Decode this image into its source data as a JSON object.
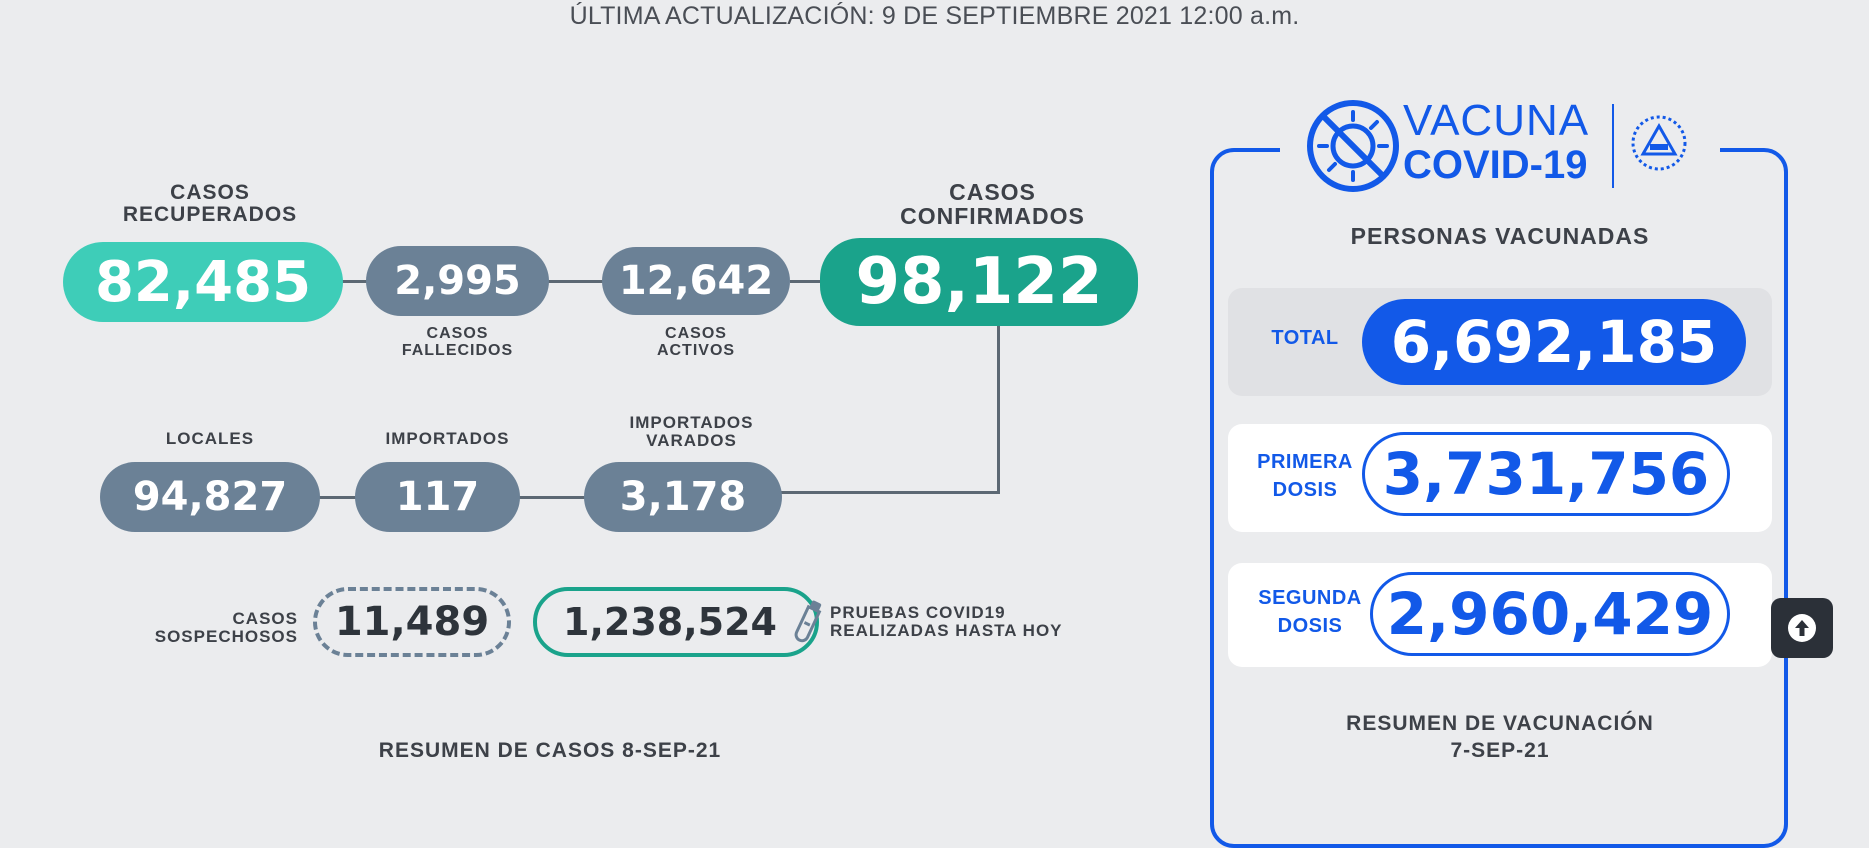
{
  "update": "ÚLTIMA ACTUALIZACIÓN: 9 DE SEPTIEMBRE 2021 12:00 a.m.",
  "cases": {
    "recuperados": {
      "label1": "CASOS",
      "label2": "RECUPERADOS",
      "value": "82,485"
    },
    "fallecidos": {
      "label1": "CASOS",
      "label2": "FALLECIDOS",
      "value": "2,995"
    },
    "activos": {
      "label1": "CASOS",
      "label2": "ACTIVOS",
      "value": "12,642"
    },
    "confirmados": {
      "label1": "CASOS",
      "label2": "CONFIRMADOS",
      "value": "98,122"
    },
    "locales": {
      "label": "LOCALES",
      "value": "94,827"
    },
    "importados": {
      "label": "IMPORTADOS",
      "value": "117"
    },
    "varados": {
      "label1": "IMPORTADOS",
      "label2": "VARADOS",
      "value": "3,178"
    },
    "sospechosos": {
      "label1": "CASOS",
      "label2": "SOSPECHOSOS",
      "value": "11,489"
    },
    "pruebas": {
      "label1": "PRUEBAS COVID19",
      "label2": "REALIZADAS HASTA HOY",
      "value": "1,238,524"
    },
    "summary": "RESUMEN DE CASOS 8-SEP-21"
  },
  "vaccine": {
    "logo_line1": "VACUNA",
    "logo_line2": "COVID-19",
    "title": "PERSONAS VACUNADAS",
    "total": {
      "label": "TOTAL",
      "value": "6,692,185"
    },
    "primera": {
      "label1": "PRIMERA",
      "label2": "DOSIS",
      "value": "3,731,756"
    },
    "segunda": {
      "label1": "SEGUNDA",
      "label2": "DOSIS",
      "value": "2,960,429"
    },
    "summary1": "RESUMEN DE VACUNACIÓN",
    "summary2": "7-SEP-21"
  },
  "icons": [
    "virus-crossed-icon",
    "coat-of-arms-icon",
    "test-tube-icon",
    "arrow-up-icon"
  ],
  "colors": {
    "recovered": "#3ecdb8",
    "confirmed": "#1aa38b",
    "gray_pill": "#6b8196",
    "vaccine_blue": "#1259e8",
    "suspect_border": "#6b8196",
    "tests_border": "#1aa38b"
  }
}
